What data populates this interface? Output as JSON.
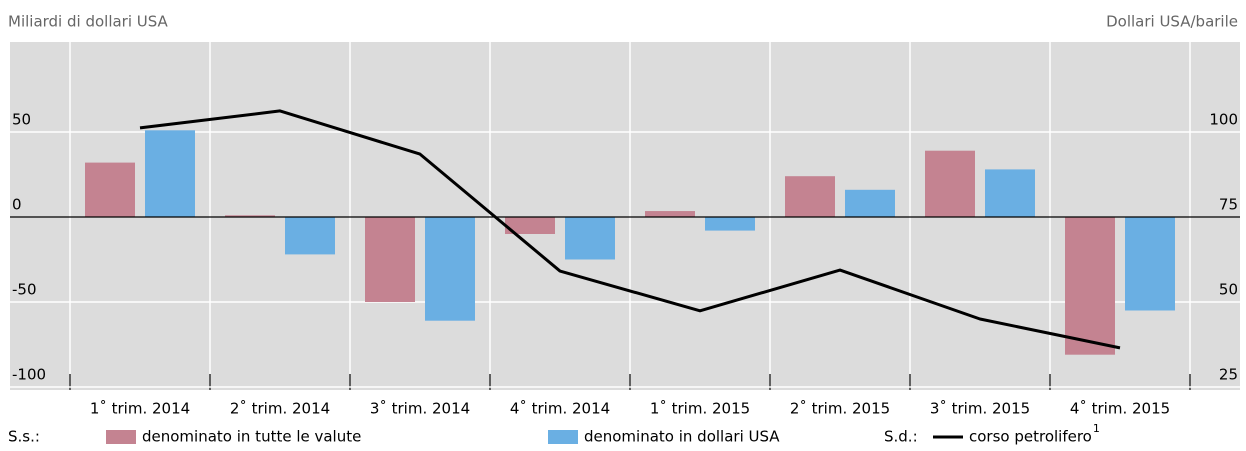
{
  "chart_data": {
    "type": "bar",
    "left_axis_label": "Miliardi di dollari USA",
    "right_axis_label": "Dollari USA/barile",
    "categories": [
      "1˚ trim. 2014",
      "2˚ trim. 2014",
      "3˚ trim. 2014",
      "4˚ trim. 2014",
      "1˚ trim. 2015",
      "2˚ trim. 2015",
      "3˚ trim. 2015",
      "4˚ trim. 2015"
    ],
    "series": [
      {
        "name": "denominato in tutte le valute",
        "color": "#c48391",
        "values": [
          32,
          1,
          -50,
          -10,
          3.5,
          24,
          39,
          -81
        ]
      },
      {
        "name": "denominato in dollari USA",
        "color": "#6aafe3",
        "values": [
          51,
          -22,
          -61,
          -25,
          -8,
          16,
          28,
          -55
        ]
      },
      {
        "name": "corso petrolifero",
        "footnote": "1",
        "type": "line",
        "axis": "y2",
        "color": "#000000",
        "values": [
          101.2,
          106.2,
          93.5,
          59.1,
          47.4,
          59.4,
          45,
          36.5
        ]
      }
    ],
    "legend_left_prefix": "S.s.:",
    "legend_right_prefix": "S.d.:",
    "ylim": [
      -100,
      100
    ],
    "yticks": [
      -100,
      -50,
      0,
      50
    ],
    "y2lim": [
      25,
      125
    ],
    "y2ticks": [
      25,
      50,
      75,
      100
    ],
    "grid": true
  }
}
